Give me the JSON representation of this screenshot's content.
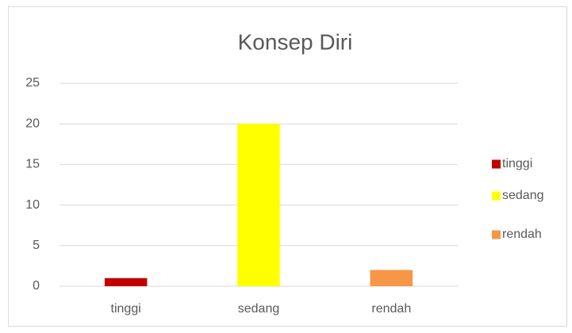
{
  "chart_data": {
    "type": "bar",
    "title": "Konsep Diri",
    "categories": [
      "tinggi",
      "sedang",
      "rendah"
    ],
    "values": [
      1,
      20,
      2
    ],
    "colors": [
      "#c00000",
      "#ffff00",
      "#f79646"
    ],
    "ylim": [
      0,
      25
    ],
    "yticks": [
      0,
      5,
      10,
      15,
      20,
      25
    ],
    "grid": true,
    "legend": "right"
  }
}
